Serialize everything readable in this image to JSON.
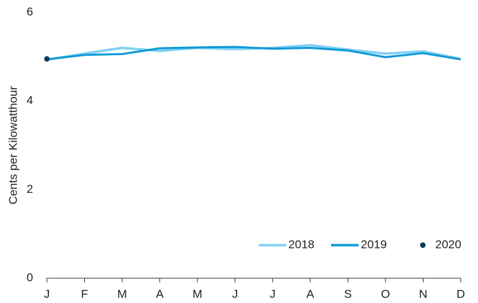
{
  "chart_data": {
    "type": "line",
    "y_label": "Cents per Kilowatthour",
    "categories": [
      "J",
      "F",
      "M",
      "A",
      "M",
      "J",
      "J",
      "A",
      "S",
      "O",
      "N",
      "D"
    ],
    "series": [
      {
        "name": "2018",
        "color": "#7fd0f5",
        "values": [
          4.93,
          5.07,
          5.2,
          5.13,
          5.2,
          5.17,
          5.2,
          5.26,
          5.16,
          5.07,
          5.12,
          4.95
        ]
      },
      {
        "name": "2019",
        "color": "#0f9ad6",
        "values": [
          4.94,
          5.04,
          5.06,
          5.19,
          5.21,
          5.22,
          5.18,
          5.2,
          5.14,
          4.99,
          5.08,
          4.94
        ]
      },
      {
        "name": "2020",
        "color": "#0b3c5d",
        "values": [
          4.95,
          null,
          null,
          null,
          null,
          null,
          null,
          null,
          null,
          null,
          null,
          null
        ]
      }
    ],
    "ylim": [
      0,
      6
    ],
    "yticks": [
      0,
      2,
      4,
      6
    ],
    "grid": false,
    "legend": "lower right"
  }
}
